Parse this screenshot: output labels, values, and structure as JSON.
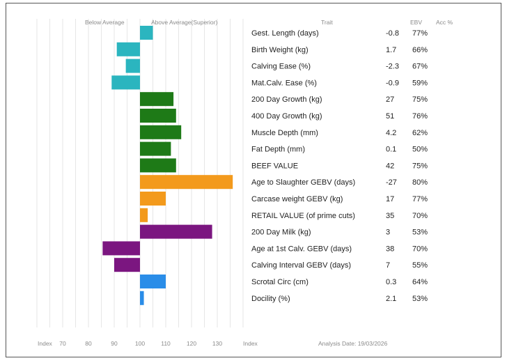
{
  "chart_data": {
    "type": "bar",
    "orientation": "horizontal",
    "headers": {
      "below": "Below Average",
      "above": "Above Average(Superior)",
      "trait": "Trait",
      "ebv": "EBV",
      "acc": "Acc %"
    },
    "footer": {
      "index_left": "Index",
      "index_right": "Index",
      "ticks": [
        "70",
        "80",
        "90",
        "100",
        "110",
        "120",
        "130"
      ],
      "analysis_date": "Analysis Date: 19/03/2026"
    },
    "xlim": [
      70,
      140
    ],
    "baseline": 100,
    "groups": {
      "calving": "#2bb5bf",
      "growth": "#1e7a17",
      "carcase": "#f39a1c",
      "maternal": "#7b1680",
      "fertility": "#2a8de8"
    },
    "rows": [
      {
        "trait": "Gest. Length (days)",
        "ebv": "-0.8",
        "acc": "77%",
        "index": 105,
        "group": "calving"
      },
      {
        "trait": "Birth Weight (kg)",
        "ebv": "1.7",
        "acc": "66%",
        "index": 91,
        "group": "calving"
      },
      {
        "trait": "Calving Ease (%)",
        "ebv": "-2.3",
        "acc": "67%",
        "index": 94.5,
        "group": "calving"
      },
      {
        "trait": "Mat.Calv. Ease (%)",
        "ebv": "-0.9",
        "acc": "59%",
        "index": 89,
        "group": "calving"
      },
      {
        "trait": "200 Day Growth (kg)",
        "ebv": "27",
        "acc": "75%",
        "index": 113,
        "group": "growth"
      },
      {
        "trait": "400 Day Growth (kg)",
        "ebv": "51",
        "acc": "76%",
        "index": 114,
        "group": "growth"
      },
      {
        "trait": "Muscle Depth (mm)",
        "ebv": "4.2",
        "acc": "62%",
        "index": 116,
        "group": "growth"
      },
      {
        "trait": "Fat Depth (mm)",
        "ebv": "0.1",
        "acc": "50%",
        "index": 112,
        "group": "growth"
      },
      {
        "trait": "BEEF VALUE",
        "ebv": "42",
        "acc": "75%",
        "index": 114,
        "group": "growth"
      },
      {
        "trait": "Age to Slaughter GEBV (days)",
        "ebv": "-27",
        "acc": "80%",
        "index": 136,
        "group": "carcase"
      },
      {
        "trait": "Carcase weight GEBV (kg)",
        "ebv": "17",
        "acc": "77%",
        "index": 110,
        "group": "carcase"
      },
      {
        "trait": "RETAIL VALUE (of prime cuts)",
        "ebv": "35",
        "acc": "70%",
        "index": 103,
        "group": "carcase"
      },
      {
        "trait": "200 Day Milk (kg)",
        "ebv": "3",
        "acc": "53%",
        "index": 128,
        "group": "maternal"
      },
      {
        "trait": "Age at 1st Calv. GEBV (days)",
        "ebv": "38",
        "acc": "70%",
        "index": 85.5,
        "group": "maternal"
      },
      {
        "trait": "Calving Interval GEBV (days)",
        "ebv": "7",
        "acc": "55%",
        "index": 90,
        "group": "maternal"
      },
      {
        "trait": "Scrotal Circ (cm)",
        "ebv": "0.3",
        "acc": "64%",
        "index": 110,
        "group": "fertility"
      },
      {
        "trait": "Docility (%)",
        "ebv": "2.1",
        "acc": "53%",
        "index": 101.5,
        "group": "fertility"
      }
    ]
  }
}
